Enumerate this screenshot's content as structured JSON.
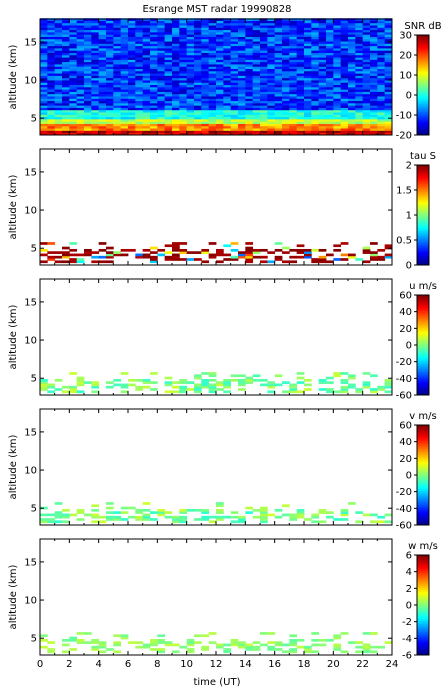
{
  "figure_title": "Esrange MST radar 19990828",
  "x_axis": {
    "label": "time (UT)",
    "range": [
      0,
      24
    ],
    "ticks": [
      0,
      2,
      4,
      6,
      8,
      10,
      12,
      14,
      16,
      18,
      20,
      22,
      24
    ]
  },
  "y_axis": {
    "label": "altitude (km)",
    "range": [
      2.8,
      18
    ],
    "ticks": [
      5,
      10,
      15
    ]
  },
  "colormap": "jet",
  "chart_data": [
    {
      "type": "heatmap",
      "id": "snr",
      "colorbar_label": "SNR dB",
      "clim": [
        -20,
        30
      ],
      "colorbar_ticks": [
        -20,
        -10,
        0,
        10,
        20,
        30
      ],
      "x": [
        0,
        24
      ],
      "y": [
        2.8,
        18
      ],
      "description_values": "Low-altitude layer (~3-4.5 km) high SNR 15-30 dB decreasing with height; above ~6 km noise near -15 to -5 dB over all times"
    },
    {
      "type": "heatmap",
      "id": "tau",
      "colorbar_label": "tau S",
      "clim": [
        0,
        2
      ],
      "colorbar_ticks": [
        0,
        0.5,
        1,
        1.5,
        2
      ],
      "x": [
        0,
        24
      ],
      "y": [
        2.8,
        18
      ],
      "description_values": "Sparse cells at 3-5 km, mostly 1.8-2 s with some 0.5-1.5 s near 0-2 UT and 22-24 UT"
    },
    {
      "type": "heatmap",
      "id": "u",
      "colorbar_label": "u m/s",
      "clim": [
        -60,
        60
      ],
      "colorbar_ticks": [
        -60,
        -40,
        -20,
        0,
        20,
        40,
        60
      ],
      "x": [
        0,
        24
      ],
      "y": [
        2.8,
        18
      ],
      "description_values": "Sparse cells at 3-5.5 km with values near -10 to 10 m/s"
    },
    {
      "type": "heatmap",
      "id": "v",
      "colorbar_label": "v m/s",
      "clim": [
        -60,
        60
      ],
      "colorbar_ticks": [
        -60,
        -40,
        -20,
        0,
        20,
        40,
        60
      ],
      "x": [
        0,
        24
      ],
      "y": [
        2.8,
        18
      ],
      "description_values": "Sparse cells at 3-5.5 km with values near -5 to 10 m/s"
    },
    {
      "type": "heatmap",
      "id": "w",
      "colorbar_label": "w m/s",
      "clim": [
        -6,
        6
      ],
      "colorbar_ticks": [
        -6,
        -4,
        -2,
        0,
        2,
        4,
        6
      ],
      "x": [
        0,
        24
      ],
      "y": [
        2.8,
        18
      ],
      "description_values": "Sparse cells at 3-5.5 km with values near -0.5 to 1 m/s"
    }
  ]
}
